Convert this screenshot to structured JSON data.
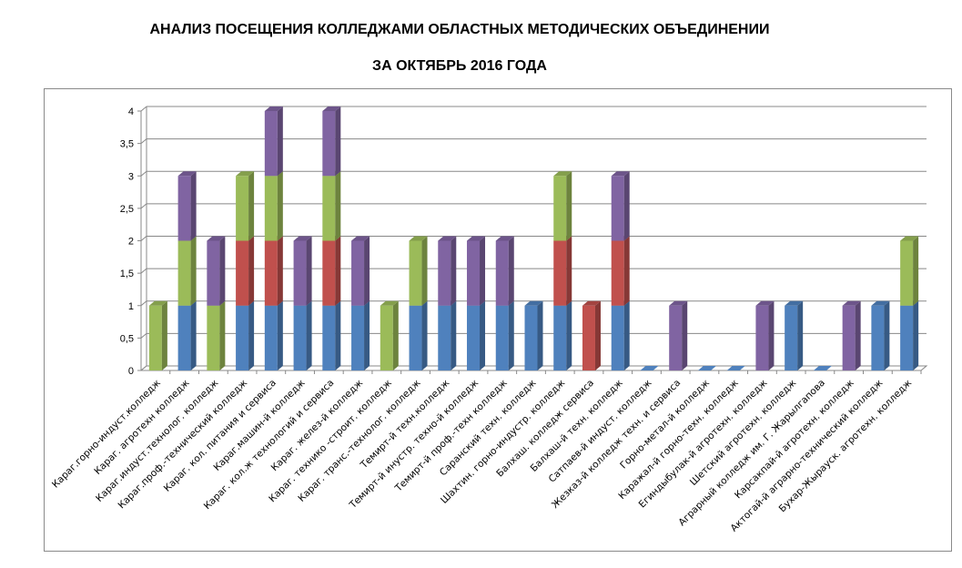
{
  "chart_data": {
    "type": "bar",
    "stacked": true,
    "title": "АНАЛИЗ ПОСЕЩЕНИЯ  КОЛЛЕДЖАМИ ОБЛАСТНЫХ МЕТОДИЧЕСКИХ ОБЪЕДИНЕНИИ",
    "subtitle": "ЗА ОКТЯБРЬ 2016 ГОДА",
    "xlabel": "",
    "ylabel": "",
    "ylim": [
      0,
      4
    ],
    "yticks": [
      "0",
      "0,5",
      "1",
      "1,5",
      "2",
      "2,5",
      "3",
      "3,5",
      "4"
    ],
    "grid": true,
    "categories": [
      "Караг.горно-индуст.колледж",
      "Караг. агротехн колледж",
      "Караг.индуст.технолог. колледж",
      "Караг.проф.-технический колледж",
      "Караг. кол. питания и сервиса",
      "Караг.машин-й колледж",
      "Караг. кол.ж технологий и сервиса",
      "Караг. желез-й колледж",
      "Караг. технико -строит. колледж",
      "Караг. транс.-технолог. колледж",
      "Темирт-й техн.колледж",
      "Темирт-й инустр. техно-й колледж",
      "Темирт-й проф.-техн колледж",
      "Саранский техн. колледж",
      "Шахтин. горно-индустр. колледж",
      "Балхаш. колледж сервиса",
      "Балхаш-й техн.  колледж",
      "Сатпаев-й индуст. колледж",
      "Жезказ-й колледж  техн. и сервиса",
      "Горно-метал-й колледж",
      "Каражал-й горно-техн. колледж",
      "Егиндыбулак-й агротехн. колледж",
      "Шетский  агротехн. колледж",
      "Аграрный колледж им. Г. Жарылгапова",
      "Карсакпай-й агротехн. колледж",
      "Актогай-й аграрно-технический колледж",
      "Бухар-Жырауск. агротехн. колледж"
    ],
    "series": [
      {
        "color": "#4F81BD",
        "values": [
          0,
          1,
          0,
          1,
          1,
          1,
          1,
          1,
          0,
          1,
          1,
          1,
          1,
          1,
          1,
          0,
          1,
          0,
          0,
          0,
          0,
          0,
          1,
          0,
          0,
          1,
          1
        ]
      },
      {
        "color": "#C0504D",
        "values": [
          0,
          0,
          0,
          1,
          1,
          0,
          1,
          0,
          0,
          0,
          0,
          0,
          0,
          0,
          1,
          1,
          1,
          0,
          0,
          0,
          0,
          0,
          0,
          0,
          0,
          0,
          0
        ]
      },
      {
        "color": "#9BBB59",
        "values": [
          1,
          1,
          1,
          1,
          1,
          0,
          1,
          0,
          1,
          1,
          0,
          0,
          0,
          0,
          1,
          0,
          0,
          0,
          0,
          0,
          0,
          0,
          0,
          0,
          0,
          0,
          1
        ]
      },
      {
        "color": "#8064A2",
        "values": [
          0,
          1,
          1,
          0,
          1,
          1,
          1,
          1,
          0,
          0,
          1,
          1,
          1,
          0,
          0,
          0,
          1,
          0,
          1,
          0,
          0,
          1,
          0,
          0,
          1,
          0,
          0
        ]
      }
    ]
  }
}
